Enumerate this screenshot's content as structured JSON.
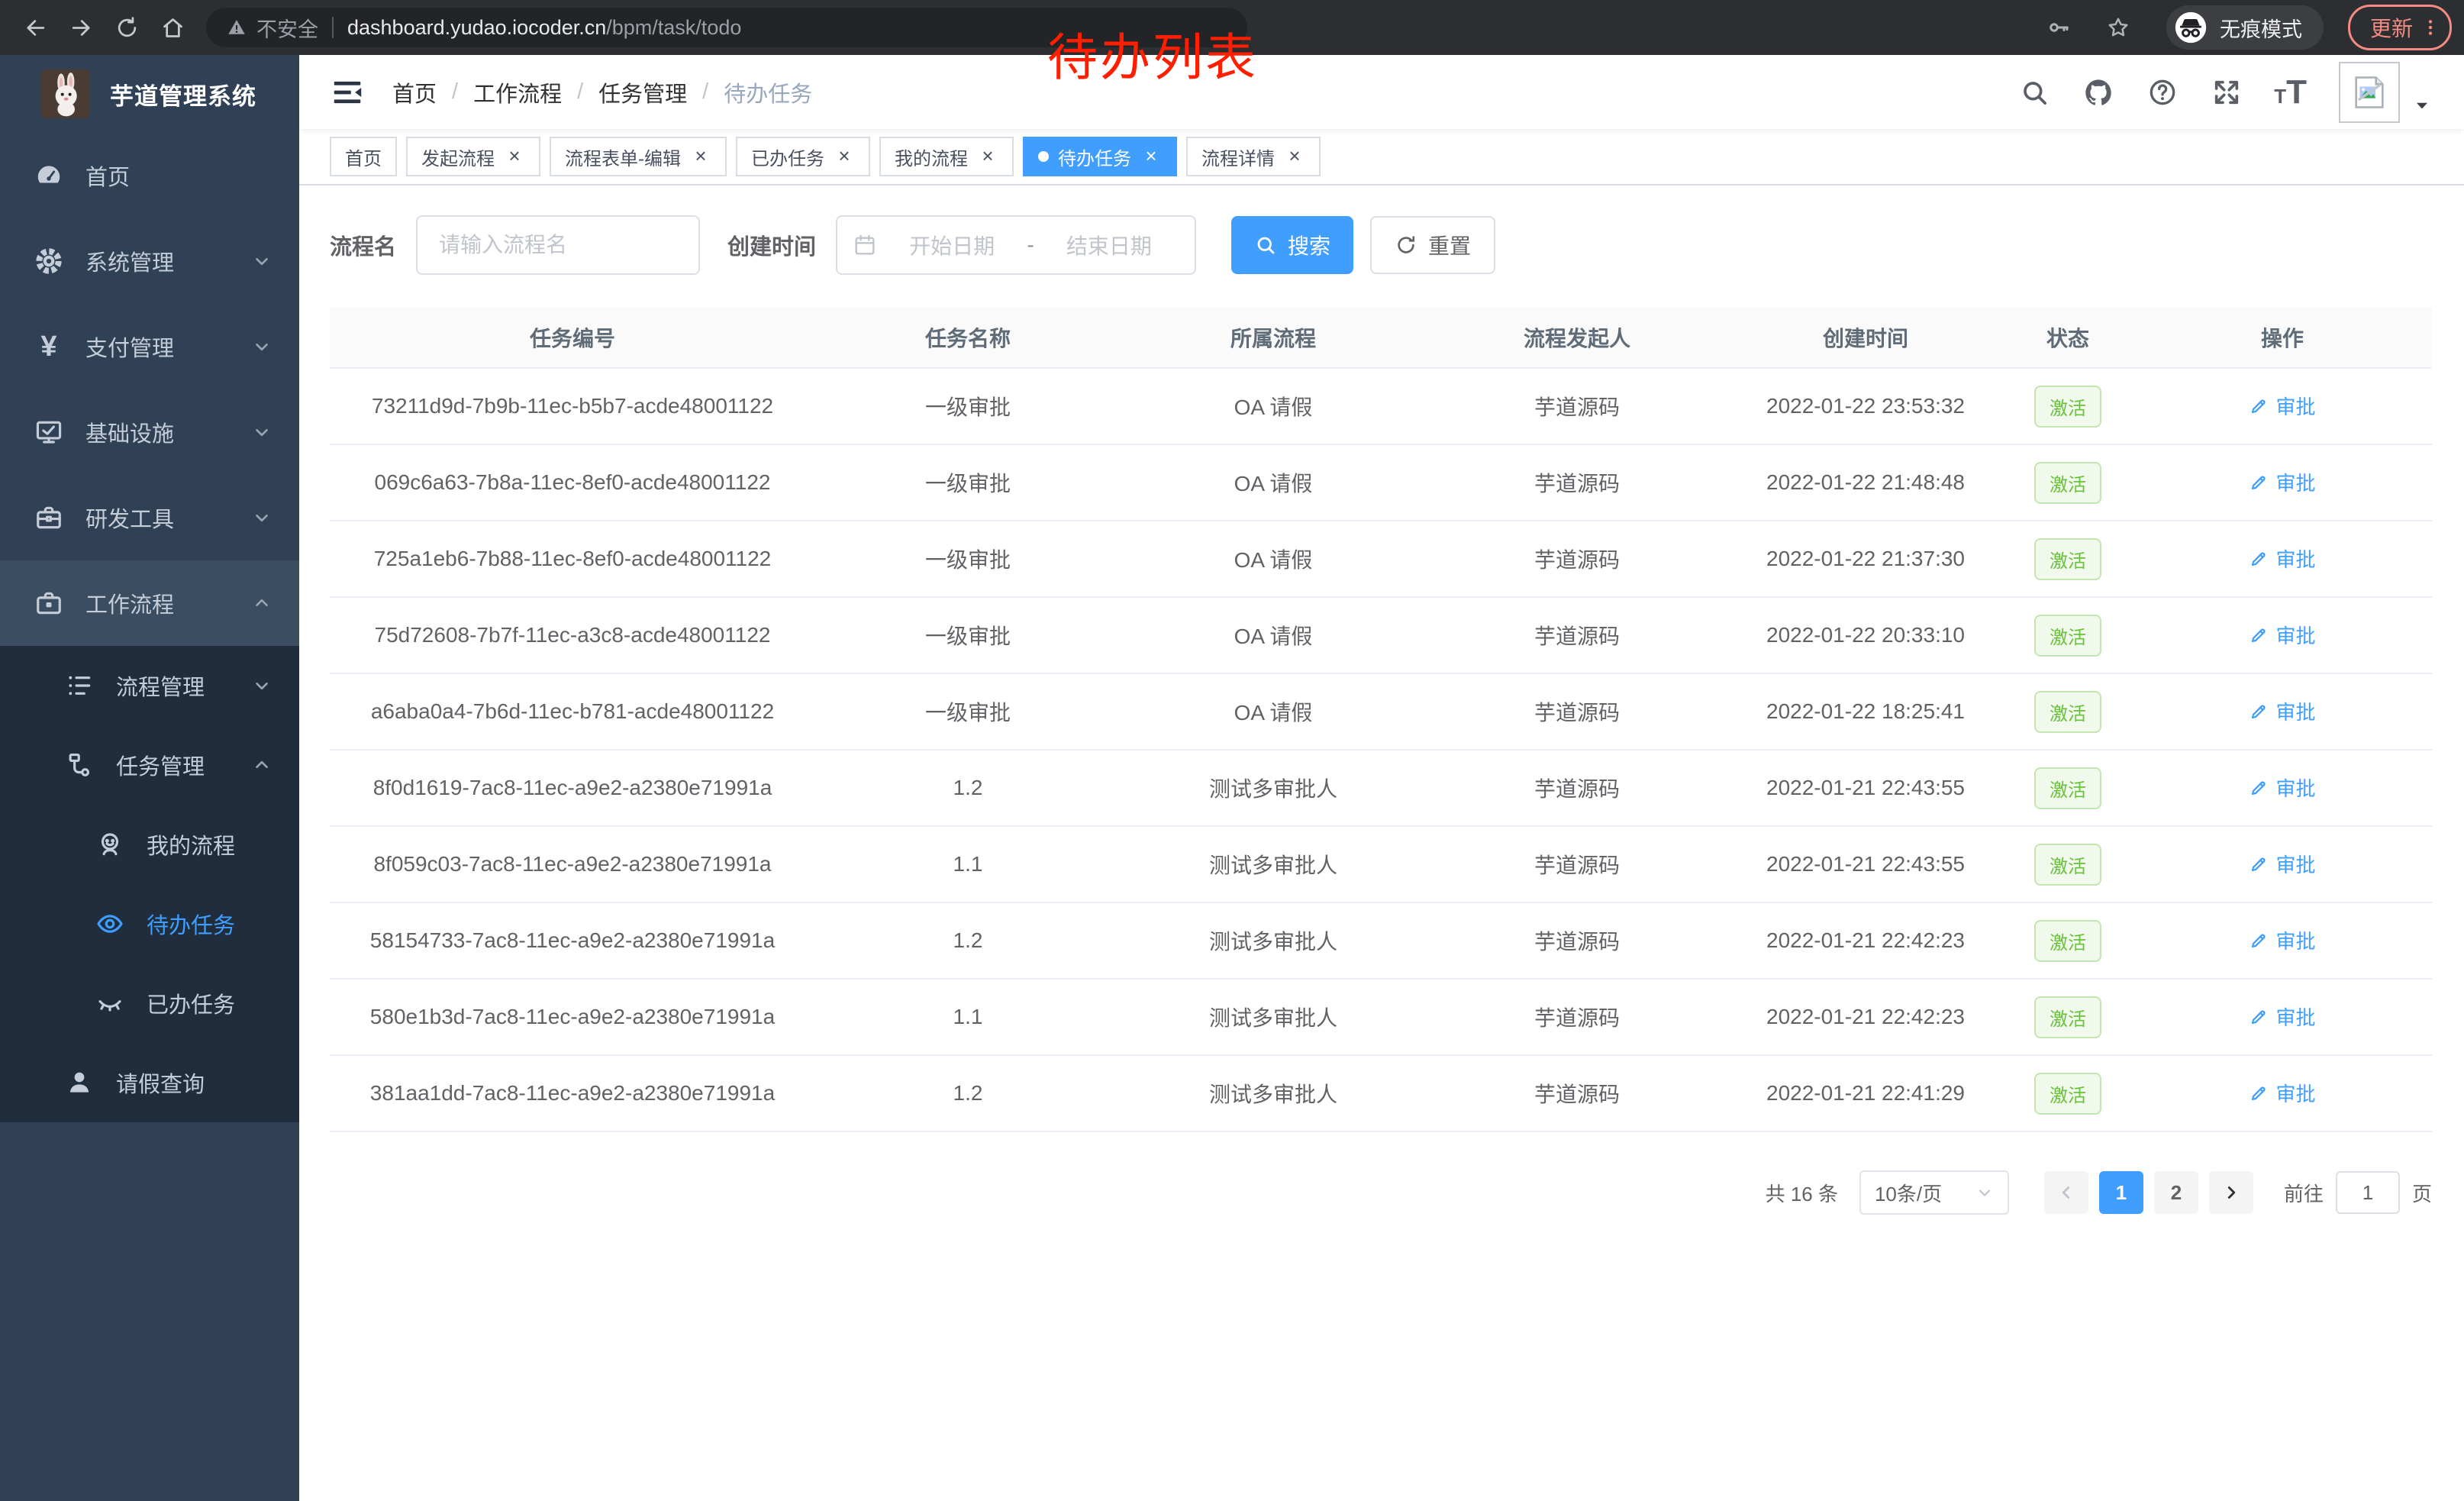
{
  "colors": {
    "accent": "#409eff",
    "success_text": "#67c23a",
    "success_bg": "#f0f9eb",
    "success_border": "#c2e7b0",
    "sidebar_bg": "#304156",
    "submenu_bg": "#1f2d3d",
    "annotation_red": "#ff1f00",
    "update_red": "#f28b82"
  },
  "browser": {
    "security_warning": "不安全",
    "url_host": "dashboard.yudao.iocoder.cn",
    "url_path": "/bpm/task/todo",
    "incognito_label": "无痕模式",
    "update_label": "更新"
  },
  "annotation": {
    "text": "待办列表"
  },
  "sidebar": {
    "title": "芋道管理系统",
    "items": [
      {
        "key": "home",
        "label": "首页",
        "icon": "dashboard-icon",
        "level": 1,
        "submenu": false,
        "arrow": null,
        "active": false,
        "open": false
      },
      {
        "key": "system",
        "label": "系统管理",
        "icon": "gear-icon",
        "level": 1,
        "submenu": false,
        "arrow": "down",
        "active": false,
        "open": false
      },
      {
        "key": "payment",
        "label": "支付管理",
        "icon": "yen-icon",
        "level": 1,
        "submenu": false,
        "arrow": "down",
        "active": false,
        "open": false
      },
      {
        "key": "infra",
        "label": "基础设施",
        "icon": "monitor-icon",
        "level": 1,
        "submenu": false,
        "arrow": "down",
        "active": false,
        "open": false
      },
      {
        "key": "devtools",
        "label": "研发工具",
        "icon": "toolbox-icon",
        "level": 1,
        "submenu": false,
        "arrow": "down",
        "active": false,
        "open": false
      },
      {
        "key": "workflow",
        "label": "工作流程",
        "icon": "briefcase-icon",
        "level": 1,
        "submenu": false,
        "arrow": "up",
        "active": false,
        "open": true
      },
      {
        "key": "process-mgmt",
        "label": "流程管理",
        "icon": "list-icon",
        "level": 2,
        "submenu": true,
        "arrow": "down",
        "active": false,
        "open": false
      },
      {
        "key": "task-mgmt",
        "label": "任务管理",
        "icon": "flow-tree-icon",
        "level": 2,
        "submenu": true,
        "arrow": "up",
        "active": false,
        "open": false
      },
      {
        "key": "my-process",
        "label": "我的流程",
        "icon": "face-icon",
        "level": 3,
        "submenu": true,
        "arrow": null,
        "active": false,
        "open": false
      },
      {
        "key": "todo-task",
        "label": "待办任务",
        "icon": "eye-open-icon",
        "level": 3,
        "submenu": true,
        "arrow": null,
        "active": true,
        "open": false
      },
      {
        "key": "done-task",
        "label": "已办任务",
        "icon": "eye-closed-icon",
        "level": 3,
        "submenu": true,
        "arrow": null,
        "active": false,
        "open": false
      },
      {
        "key": "leave-query",
        "label": "请假查询",
        "icon": "user-icon",
        "level": 2,
        "submenu": true,
        "arrow": null,
        "active": false,
        "open": false
      }
    ]
  },
  "navbar": {
    "breadcrumb": {
      "items": [
        "首页",
        "工作流程",
        "任务管理",
        "待办任务"
      ],
      "separator": "/"
    }
  },
  "tabs": [
    {
      "label": "首页",
      "closable": false,
      "active": false
    },
    {
      "label": "发起流程",
      "closable": true,
      "active": false
    },
    {
      "label": "流程表单-编辑",
      "closable": true,
      "active": false
    },
    {
      "label": "已办任务",
      "closable": true,
      "active": false
    },
    {
      "label": "我的流程",
      "closable": true,
      "active": false
    },
    {
      "label": "待办任务",
      "closable": true,
      "active": true
    },
    {
      "label": "流程详情",
      "closable": true,
      "active": false
    }
  ],
  "search": {
    "name_label": "流程名",
    "name_placeholder": "请输入流程名",
    "time_label": "创建时间",
    "start_placeholder": "开始日期",
    "range_separator": "-",
    "end_placeholder": "结束日期",
    "search_label": "搜索",
    "reset_label": "重置"
  },
  "table": {
    "headers": [
      "任务编号",
      "任务名称",
      "所属流程",
      "流程发起人",
      "创建时间",
      "状态",
      "操作"
    ],
    "rows": [
      {
        "id": "73211d9d-7b9b-11ec-b5b7-acde48001122",
        "name": "一级审批",
        "flow": "OA 请假",
        "starter": "芋道源码",
        "time": "2022-01-22 23:53:32",
        "status": "激活",
        "action": "审批"
      },
      {
        "id": "069c6a63-7b8a-11ec-8ef0-acde48001122",
        "name": "一级审批",
        "flow": "OA 请假",
        "starter": "芋道源码",
        "time": "2022-01-22 21:48:48",
        "status": "激活",
        "action": "审批"
      },
      {
        "id": "725a1eb6-7b88-11ec-8ef0-acde48001122",
        "name": "一级审批",
        "flow": "OA 请假",
        "starter": "芋道源码",
        "time": "2022-01-22 21:37:30",
        "status": "激活",
        "action": "审批"
      },
      {
        "id": "75d72608-7b7f-11ec-a3c8-acde48001122",
        "name": "一级审批",
        "flow": "OA 请假",
        "starter": "芋道源码",
        "time": "2022-01-22 20:33:10",
        "status": "激活",
        "action": "审批"
      },
      {
        "id": "a6aba0a4-7b6d-11ec-b781-acde48001122",
        "name": "一级审批",
        "flow": "OA 请假",
        "starter": "芋道源码",
        "time": "2022-01-22 18:25:41",
        "status": "激活",
        "action": "审批"
      },
      {
        "id": "8f0d1619-7ac8-11ec-a9e2-a2380e71991a",
        "name": "1.2",
        "flow": "测试多审批人",
        "starter": "芋道源码",
        "time": "2022-01-21 22:43:55",
        "status": "激活",
        "action": "审批"
      },
      {
        "id": "8f059c03-7ac8-11ec-a9e2-a2380e71991a",
        "name": "1.1",
        "flow": "测试多审批人",
        "starter": "芋道源码",
        "time": "2022-01-21 22:43:55",
        "status": "激活",
        "action": "审批"
      },
      {
        "id": "58154733-7ac8-11ec-a9e2-a2380e71991a",
        "name": "1.2",
        "flow": "测试多审批人",
        "starter": "芋道源码",
        "time": "2022-01-21 22:42:23",
        "status": "激活",
        "action": "审批"
      },
      {
        "id": "580e1b3d-7ac8-11ec-a9e2-a2380e71991a",
        "name": "1.1",
        "flow": "测试多审批人",
        "starter": "芋道源码",
        "time": "2022-01-21 22:42:23",
        "status": "激活",
        "action": "审批"
      },
      {
        "id": "381aa1dd-7ac8-11ec-a9e2-a2380e71991a",
        "name": "1.2",
        "flow": "测试多审批人",
        "starter": "芋道源码",
        "time": "2022-01-21 22:41:29",
        "status": "激活",
        "action": "审批"
      }
    ]
  },
  "pagination": {
    "total": "共 16 条",
    "page_size": "10条/页",
    "pages": [
      "1",
      "2"
    ],
    "current": "1",
    "goto_label": "前往",
    "goto_value": "1",
    "unit": "页"
  }
}
